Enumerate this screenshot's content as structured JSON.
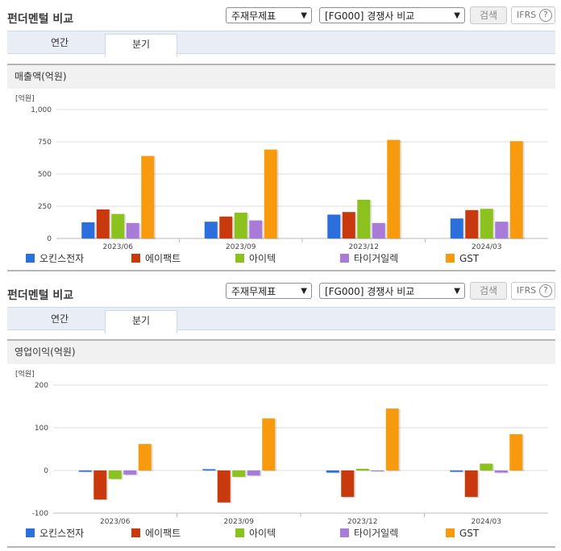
{
  "panels": [
    {
      "title": "펀더멘털 비교",
      "statement_select": "주재무제표",
      "compare_select": "[FG000] 경쟁사 비교",
      "search_label": "검색",
      "ifrs_label": "IFRS",
      "help_label": "?",
      "tabs": [
        "연간",
        "분기"
      ],
      "active_tab": 1,
      "section_title": "매출액(억원)"
    },
    {
      "title": "펀더멘털 비교",
      "statement_select": "주재무제표",
      "compare_select": "[FG000] 경쟁사 비교",
      "search_label": "검색",
      "ifrs_label": "IFRS",
      "help_label": "?",
      "tabs": [
        "연간",
        "분기"
      ],
      "active_tab": 1,
      "section_title": "영업이익(억원)"
    }
  ],
  "colors": {
    "오킨스전자": "#2a6fdb",
    "에이팩트": "#c83a0d",
    "아이텍": "#8cc21d",
    "타이거일렉": "#a87bd9",
    "GST": "#f89a0d"
  },
  "chart_data": [
    {
      "type": "bar",
      "unit_label": "[억원]",
      "categories": [
        "2023/06",
        "2023/09",
        "2023/12",
        "2024/03"
      ],
      "ylim": [
        0,
        1000
      ],
      "yticks": [
        0,
        250,
        500,
        750,
        1000
      ],
      "ytick_labels": [
        "0",
        "250",
        "500",
        "750",
        "1,000"
      ],
      "series": [
        {
          "name": "오킨스전자",
          "values": [
            125,
            130,
            185,
            155
          ]
        },
        {
          "name": "에이팩트",
          "values": [
            225,
            170,
            205,
            220
          ]
        },
        {
          "name": "아이텍",
          "values": [
            190,
            200,
            300,
            230
          ]
        },
        {
          "name": "타이거일렉",
          "values": [
            120,
            140,
            120,
            130
          ]
        },
        {
          "name": "GST",
          "values": [
            640,
            690,
            765,
            755
          ]
        }
      ],
      "grid": true,
      "legend": "bottom"
    },
    {
      "type": "bar",
      "unit_label": "[억원]",
      "categories": [
        "2023/06",
        "2023/09",
        "2023/12",
        "2024/03"
      ],
      "ylim": [
        -100,
        200
      ],
      "yticks": [
        -100,
        0,
        100,
        200
      ],
      "ytick_labels": [
        "-100",
        "0",
        "100",
        "200"
      ],
      "series": [
        {
          "name": "오킨스전자",
          "values": [
            -3,
            3,
            -5,
            -3
          ]
        },
        {
          "name": "에이팩트",
          "values": [
            -68,
            -75,
            -62,
            -62
          ]
        },
        {
          "name": "아이텍",
          "values": [
            -20,
            -15,
            4,
            16
          ]
        },
        {
          "name": "타이거일렉",
          "values": [
            -10,
            -12,
            0,
            -5
          ]
        },
        {
          "name": "GST",
          "values": [
            62,
            122,
            145,
            85
          ]
        }
      ],
      "grid": true,
      "legend": "bottom"
    }
  ]
}
